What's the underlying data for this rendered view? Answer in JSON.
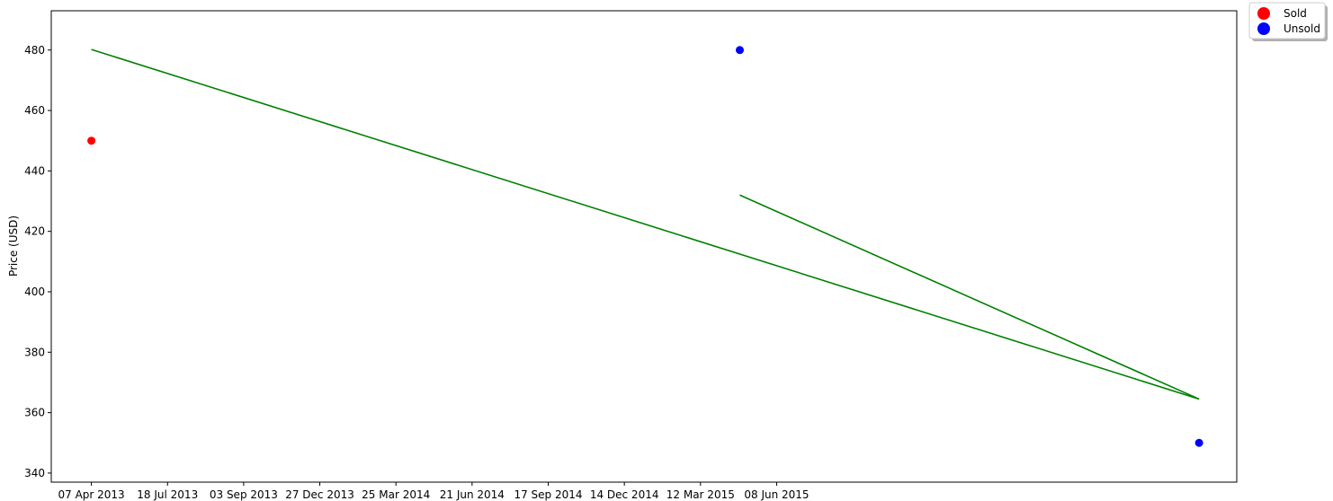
{
  "chart_data": {
    "type": "scatter",
    "ylabel": "Price (USD)",
    "xlabel": "",
    "ylim": [
      337,
      493
    ],
    "yticks": [
      340,
      360,
      380,
      400,
      420,
      440,
      460,
      480
    ],
    "x_dates": [
      "07 Apr 2013",
      "18 Jul 2013",
      "03 Sep 2013",
      "27 Dec 2013",
      "25 Mar 2014",
      "21 Jun 2014",
      "17 Sep 2014",
      "14 Dec 2014",
      "12 Mar 2015",
      "08 Jun 2015"
    ],
    "xlim": [
      "2013-02-17",
      "2017-02-04"
    ],
    "legend": {
      "placement": "outside-top-right",
      "entries": [
        {
          "label": "Sold",
          "color": "#ff0000"
        },
        {
          "label": "Unsold",
          "color": "#0000ff"
        }
      ]
    },
    "series": [
      {
        "name": "Sold",
        "color": "#ff0000",
        "points": [
          {
            "x": "2013-04-07",
            "y": 450
          }
        ]
      },
      {
        "name": "Unsold",
        "color": "#0000ff",
        "points": [
          {
            "x": "2015-06-08",
            "y": 480
          },
          {
            "x": "2016-12-20",
            "y": 350
          }
        ]
      }
    ],
    "lines": [
      {
        "color": "#008000",
        "points": [
          {
            "x": "2013-04-07",
            "y": 480.2
          },
          {
            "x": "2016-12-20",
            "y": 364.5
          }
        ]
      },
      {
        "color": "#008000",
        "points": [
          {
            "x": "2015-06-08",
            "y": 432
          },
          {
            "x": "2016-12-20",
            "y": 364.5
          }
        ]
      }
    ]
  }
}
